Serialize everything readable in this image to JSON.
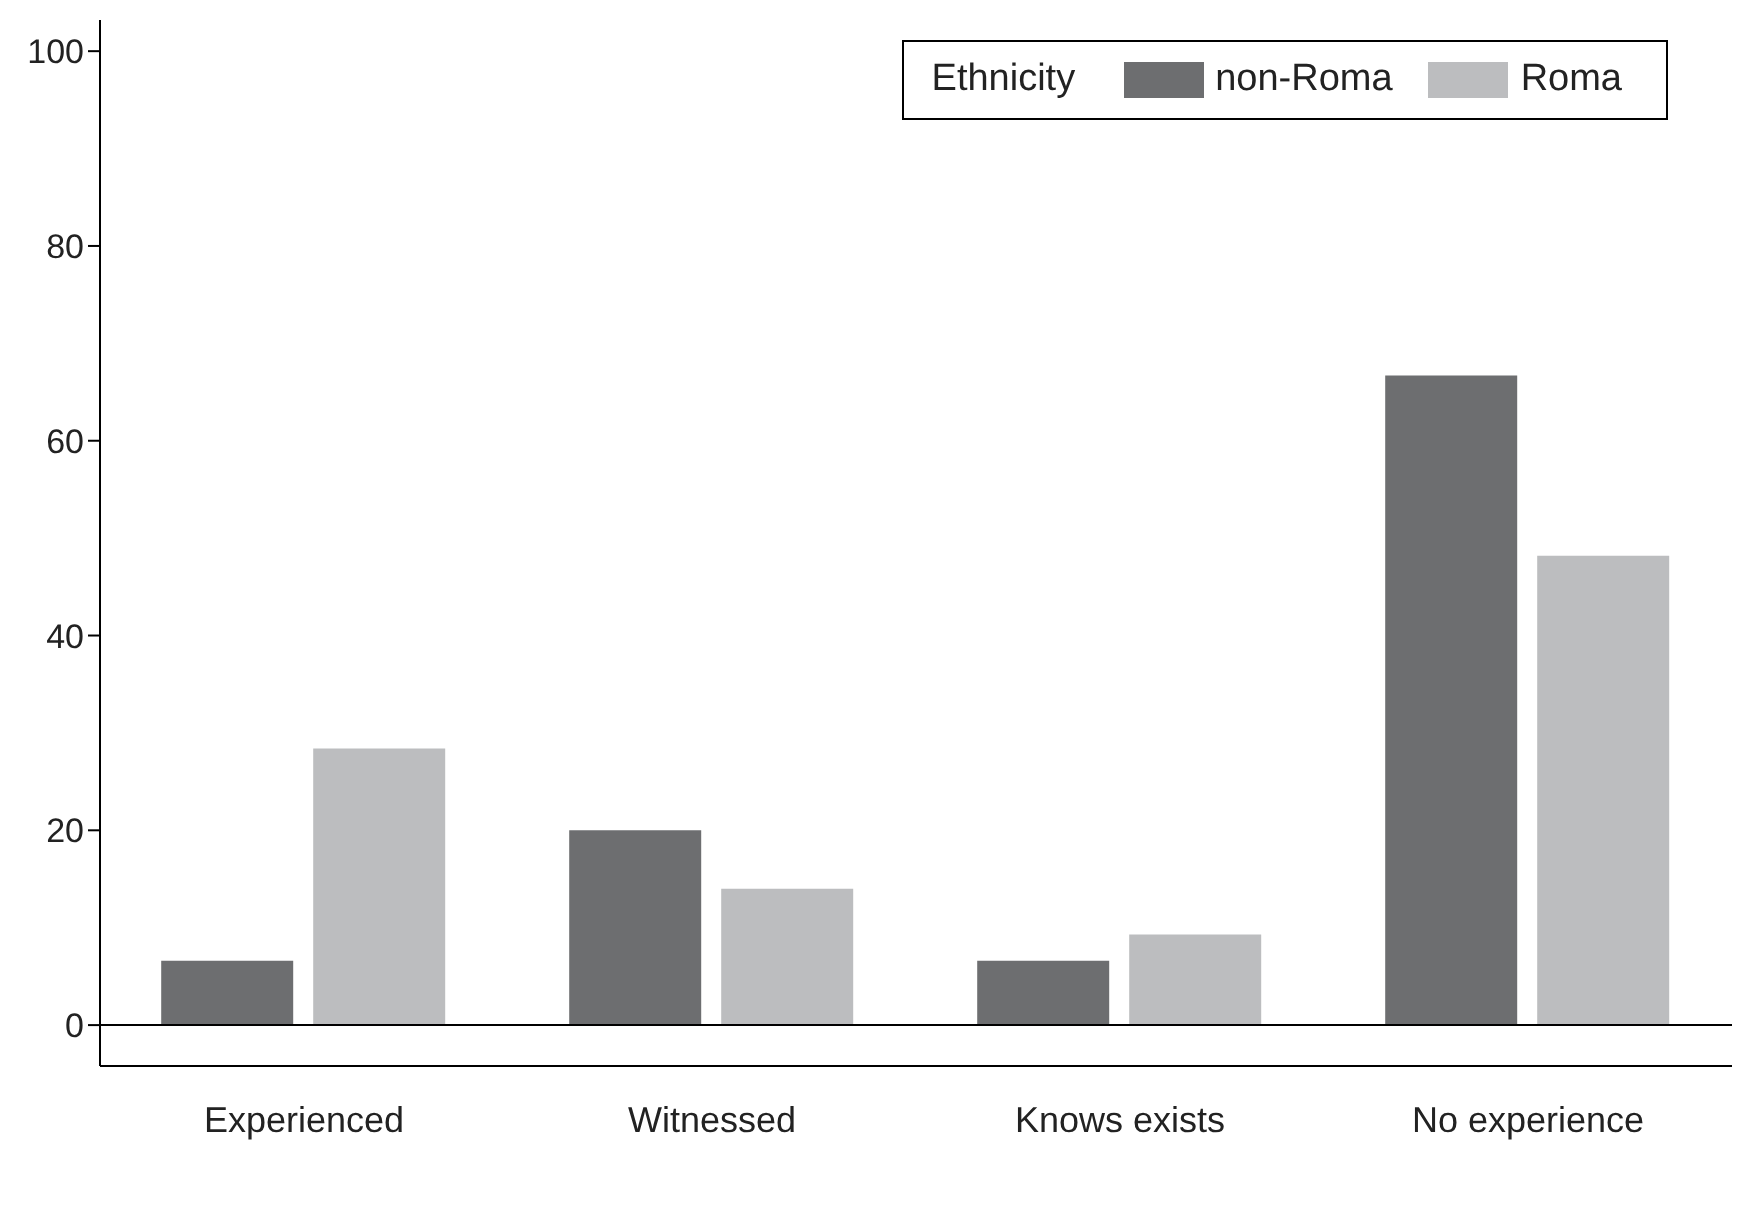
{
  "chart_data": {
    "type": "bar",
    "categories": [
      "Experienced",
      "Witnessed",
      "Knows exists",
      "No experience"
    ],
    "series": [
      {
        "name": "non-Roma",
        "color": "#6d6e70",
        "values": [
          6.6,
          20.0,
          6.6,
          66.7
        ]
      },
      {
        "name": "Roma",
        "color": "#bcbdbf",
        "values": [
          28.4,
          14.0,
          9.3,
          48.2
        ]
      }
    ],
    "legend_title": "Ethnicity",
    "legend": "top right",
    "grid": false,
    "ylim": [
      -4.2,
      103.2
    ],
    "yticks": [
      0,
      20,
      40,
      60,
      80,
      100
    ],
    "ref_lines": [
      {
        "axis": "y",
        "value": 0,
        "color": "#000000"
      }
    ]
  }
}
